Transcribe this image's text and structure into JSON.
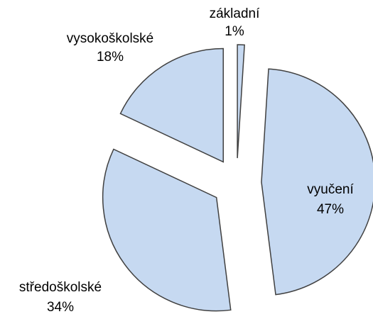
{
  "chart_data": {
    "type": "pie",
    "categories": [
      "základní",
      "vyučení",
      "středoškolské",
      "vysokoškolské"
    ],
    "values": [
      1,
      47,
      34,
      18
    ],
    "value_labels": [
      "1%",
      "47%",
      "34%",
      "18%"
    ],
    "color": "#c6d9f1",
    "exploded": true
  }
}
